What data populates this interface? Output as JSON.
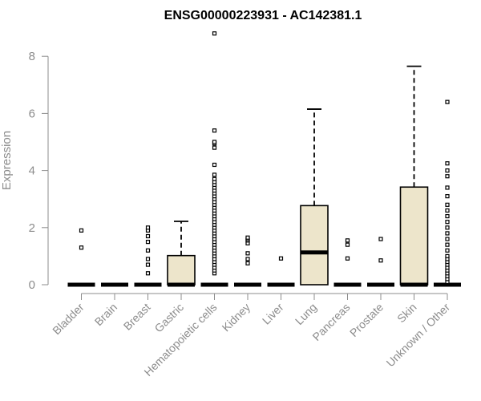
{
  "chart_data": {
    "type": "box",
    "title": "ENSG00000223931 - AC142381.1",
    "ylabel": "Expression",
    "ylim": [
      0,
      8.85
    ],
    "yticks": [
      0,
      2,
      4,
      6,
      8
    ],
    "categories": [
      "Bladder",
      "Brain",
      "Breast",
      "Gastric",
      "Hematopoietic cells",
      "Kidney",
      "Liver",
      "Lung",
      "Pancreas",
      "Prostate",
      "Skin",
      "Unknown / Other"
    ],
    "boxes": [
      {
        "q1": 0,
        "median": 0,
        "q3": 0,
        "whisker_low": 0,
        "whisker_high": 0,
        "outliers": [
          1.3,
          1.9
        ]
      },
      {
        "q1": 0,
        "median": 0,
        "q3": 0,
        "whisker_low": 0,
        "whisker_high": 0,
        "outliers": []
      },
      {
        "q1": 0,
        "median": 0,
        "q3": 0,
        "whisker_low": 0,
        "whisker_high": 0,
        "outliers": [
          0.4,
          0.7,
          0.9,
          1.2,
          1.5,
          1.7,
          1.9,
          2.0
        ]
      },
      {
        "q1": 0,
        "median": 0,
        "q3": 1.02,
        "whisker_low": 0,
        "whisker_high": 2.22,
        "outliers": []
      },
      {
        "q1": 0,
        "median": 0,
        "q3": 0,
        "whisker_low": 0,
        "whisker_high": 0,
        "outliers": [
          0.4,
          0.5,
          0.6,
          0.7,
          0.8,
          0.9,
          1.0,
          1.1,
          1.2,
          1.3,
          1.4,
          1.5,
          1.6,
          1.7,
          1.8,
          1.9,
          2.0,
          2.1,
          2.2,
          2.3,
          2.4,
          2.5,
          2.6,
          2.7,
          2.8,
          2.9,
          3.0,
          3.1,
          3.2,
          3.3,
          3.4,
          3.5,
          3.6,
          3.7,
          3.85,
          4.2,
          4.8,
          4.95,
          5.0,
          5.4,
          8.8
        ]
      },
      {
        "q1": 0,
        "median": 0,
        "q3": 0,
        "whisker_low": 0,
        "whisker_high": 0,
        "outliers": [
          0.75,
          0.9,
          1.1,
          1.45,
          1.55,
          1.6,
          1.65
        ]
      },
      {
        "q1": 0,
        "median": 0,
        "q3": 0,
        "whisker_low": 0,
        "whisker_high": 0,
        "outliers": [
          0.92
        ]
      },
      {
        "q1": 0,
        "median": 1.13,
        "q3": 2.77,
        "whisker_low": 0,
        "whisker_high": 6.15,
        "outliers": []
      },
      {
        "q1": 0,
        "median": 0,
        "q3": 0,
        "whisker_low": 0,
        "whisker_high": 0,
        "outliers": [
          0.92,
          1.4,
          1.55
        ]
      },
      {
        "q1": 0,
        "median": 0,
        "q3": 0,
        "whisker_low": 0,
        "whisker_high": 0,
        "outliers": [
          0.85,
          1.6
        ]
      },
      {
        "q1": 0,
        "median": 0,
        "q3": 3.42,
        "whisker_low": 0,
        "whisker_high": 7.65,
        "outliers": []
      },
      {
        "q1": 0,
        "median": 0,
        "q3": 0,
        "whisker_low": 0,
        "whisker_high": 0,
        "outliers": [
          0.1,
          0.2,
          0.3,
          0.4,
          0.5,
          0.6,
          0.7,
          0.8,
          0.9,
          1.0,
          1.2,
          1.4,
          1.6,
          1.8,
          2.0,
          2.2,
          2.4,
          2.6,
          2.8,
          3.1,
          3.4,
          3.8,
          4.0,
          4.25,
          6.4
        ]
      }
    ],
    "colors": {
      "box_fill": "#ede5cb",
      "axis": "#8c8c8c",
      "stroke": "#000000"
    },
    "grid": false,
    "legend": "none"
  }
}
